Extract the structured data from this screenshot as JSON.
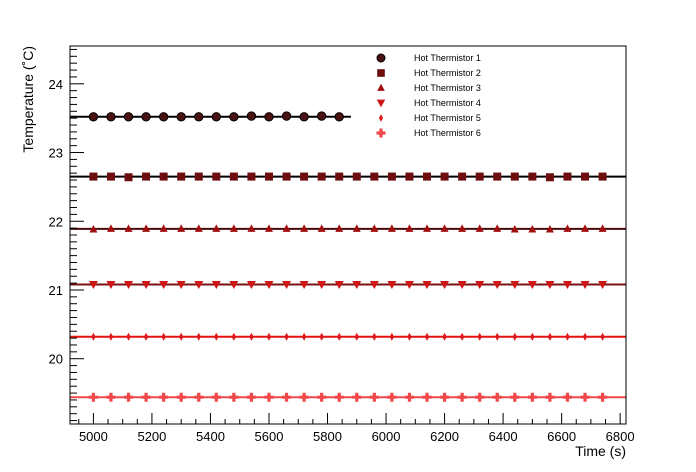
{
  "chart_data": {
    "type": "scatter",
    "title": "",
    "xlabel": "Time (s)",
    "ylabel": "Temperature (˚C)",
    "xlim": [
      4920,
      6820
    ],
    "ylim": [
      19.05,
      24.55
    ],
    "x_ticks": [
      5000,
      5200,
      5400,
      5600,
      5800,
      6000,
      6200,
      6400,
      6600,
      6800
    ],
    "y_ticks": [
      20,
      21,
      22,
      23,
      24
    ],
    "grid": false,
    "legend_position": "top-right",
    "series": [
      {
        "name": "Hot Thermistor 1",
        "marker": "circle",
        "color": "#4a1212",
        "fit_color": "#000000",
        "fit_value": 23.52,
        "fit_range": [
          4920,
          5880
        ],
        "x": [
          5000,
          5060,
          5120,
          5180,
          5240,
          5300,
          5360,
          5420,
          5480,
          5540,
          5600,
          5660,
          5720,
          5780,
          5840
        ],
        "values": [
          23.52,
          23.52,
          23.52,
          23.52,
          23.52,
          23.52,
          23.52,
          23.52,
          23.52,
          23.53,
          23.52,
          23.53,
          23.52,
          23.53,
          23.52
        ]
      },
      {
        "name": "Hot Thermistor 2",
        "marker": "square",
        "color": "#6e0d0d",
        "fit_color": "#000000",
        "fit_value": 22.65,
        "fit_range": [
          4920,
          6820
        ],
        "x": [
          5000,
          5060,
          5120,
          5180,
          5240,
          5300,
          5360,
          5420,
          5480,
          5540,
          5600,
          5660,
          5720,
          5780,
          5840,
          5900,
          5960,
          6020,
          6080,
          6140,
          6200,
          6260,
          6320,
          6380,
          6440,
          6500,
          6560,
          6620,
          6680,
          6740
        ],
        "values": [
          22.65,
          22.65,
          22.64,
          22.65,
          22.65,
          22.65,
          22.65,
          22.65,
          22.65,
          22.65,
          22.65,
          22.65,
          22.65,
          22.65,
          22.65,
          22.65,
          22.65,
          22.65,
          22.65,
          22.65,
          22.65,
          22.65,
          22.65,
          22.65,
          22.65,
          22.65,
          22.64,
          22.65,
          22.65,
          22.65
        ]
      },
      {
        "name": "Hot Thermistor 3",
        "marker": "triangle-up",
        "color": "#a00e0e",
        "fit_color": "#4a0a0a",
        "fit_value": 21.89,
        "fit_range": [
          4920,
          6820
        ],
        "x": [
          5000,
          5060,
          5120,
          5180,
          5240,
          5300,
          5360,
          5420,
          5480,
          5540,
          5600,
          5660,
          5720,
          5780,
          5840,
          5900,
          5960,
          6020,
          6080,
          6140,
          6200,
          6260,
          6320,
          6380,
          6440,
          6500,
          6560,
          6620,
          6680,
          6740
        ],
        "values": [
          21.88,
          21.89,
          21.89,
          21.89,
          21.89,
          21.89,
          21.89,
          21.89,
          21.89,
          21.89,
          21.89,
          21.89,
          21.89,
          21.89,
          21.89,
          21.89,
          21.89,
          21.89,
          21.89,
          21.89,
          21.89,
          21.89,
          21.89,
          21.89,
          21.88,
          21.88,
          21.88,
          21.89,
          21.89,
          21.89
        ]
      },
      {
        "name": "Hot Thermistor 4",
        "marker": "triangle-down",
        "color": "#d01515",
        "fit_color": "#7a1010",
        "fit_value": 21.08,
        "fit_range": [
          4920,
          6820
        ],
        "x": [
          5000,
          5060,
          5120,
          5180,
          5240,
          5300,
          5360,
          5420,
          5480,
          5540,
          5600,
          5660,
          5720,
          5780,
          5840,
          5900,
          5960,
          6020,
          6080,
          6140,
          6200,
          6260,
          6320,
          6380,
          6440,
          6500,
          6560,
          6620,
          6680,
          6740
        ],
        "values": [
          21.08,
          21.08,
          21.08,
          21.08,
          21.08,
          21.08,
          21.08,
          21.08,
          21.08,
          21.08,
          21.08,
          21.08,
          21.08,
          21.08,
          21.08,
          21.08,
          21.08,
          21.08,
          21.08,
          21.08,
          21.08,
          21.08,
          21.08,
          21.08,
          21.08,
          21.08,
          21.08,
          21.08,
          21.08,
          21.08
        ]
      },
      {
        "name": "Hot Thermistor 5",
        "marker": "diamond",
        "color": "#e01818",
        "fit_color": "#e81010",
        "fit_value": 20.32,
        "fit_range": [
          4920,
          6820
        ],
        "x": [
          5000,
          5060,
          5120,
          5180,
          5240,
          5300,
          5360,
          5420,
          5480,
          5540,
          5600,
          5660,
          5720,
          5780,
          5840,
          5900,
          5960,
          6020,
          6080,
          6140,
          6200,
          6260,
          6320,
          6380,
          6440,
          6500,
          6560,
          6620,
          6680,
          6740
        ],
        "values": [
          20.32,
          20.32,
          20.32,
          20.32,
          20.32,
          20.32,
          20.32,
          20.32,
          20.32,
          20.32,
          20.32,
          20.32,
          20.32,
          20.32,
          20.32,
          20.32,
          20.32,
          20.32,
          20.32,
          20.32,
          20.32,
          20.32,
          20.32,
          20.32,
          20.32,
          20.32,
          20.32,
          20.32,
          20.32,
          20.32
        ]
      },
      {
        "name": "Hot Thermistor 6",
        "marker": "cross",
        "color": "#f04848",
        "fit_color": "#f04848",
        "fit_value": 19.44,
        "fit_range": [
          4920,
          6820
        ],
        "x": [
          5000,
          5060,
          5120,
          5180,
          5240,
          5300,
          5360,
          5420,
          5480,
          5540,
          5600,
          5660,
          5720,
          5780,
          5840,
          5900,
          5960,
          6020,
          6080,
          6140,
          6200,
          6260,
          6320,
          6380,
          6440,
          6500,
          6560,
          6620,
          6680,
          6740
        ],
        "values": [
          19.44,
          19.44,
          19.44,
          19.44,
          19.44,
          19.44,
          19.44,
          19.44,
          19.44,
          19.44,
          19.44,
          19.44,
          19.44,
          19.44,
          19.44,
          19.44,
          19.44,
          19.44,
          19.44,
          19.44,
          19.44,
          19.44,
          19.44,
          19.44,
          19.44,
          19.44,
          19.44,
          19.44,
          19.44,
          19.44
        ]
      }
    ]
  }
}
